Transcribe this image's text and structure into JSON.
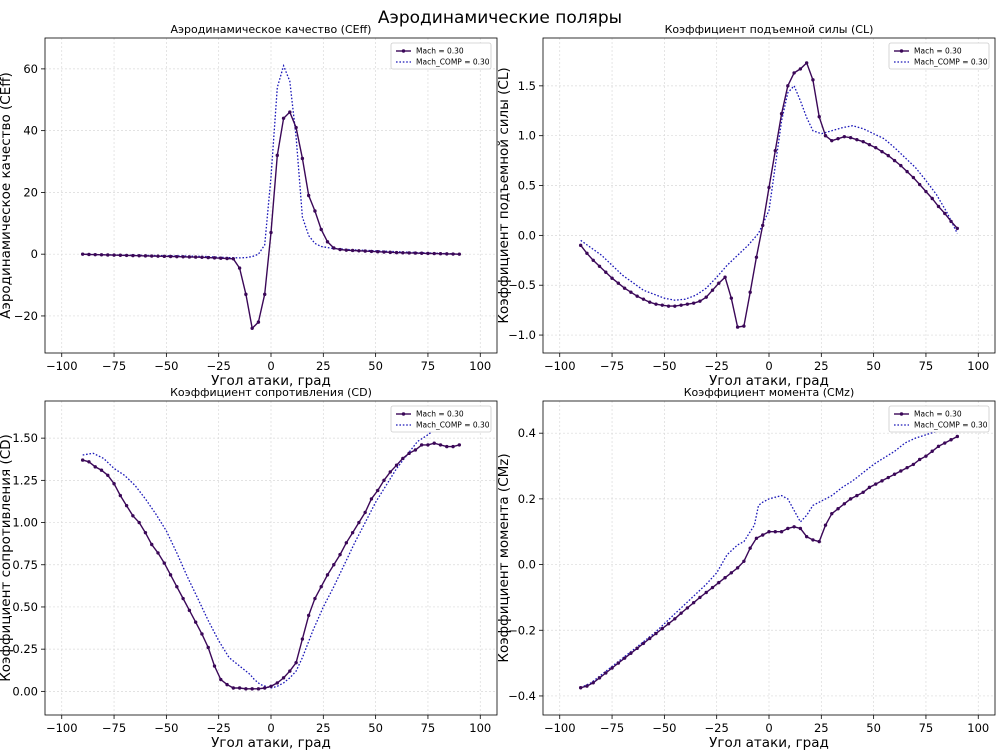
{
  "figure": {
    "title": "Аэродинамические поляры"
  },
  "legend_labels": [
    "Mach = 0.30",
    "Mach_COMP = 0.30"
  ],
  "colors": {
    "series_main": "#3b0858",
    "series_comp": "#1a17b8",
    "grid": "#d9d9d9",
    "frame": "#000000"
  },
  "chart_data": [
    {
      "type": "line",
      "title": "Аэродинамическое качество (CEff)",
      "xlabel": "Угол атаки, град",
      "ylabel": "Аэродинамическое качество (CEff)",
      "xlim": [
        -108,
        108
      ],
      "ylim": [
        -32,
        70
      ],
      "xticks": [
        -100,
        -75,
        -50,
        -25,
        0,
        25,
        50,
        75,
        100
      ],
      "yticks": [
        -20,
        0,
        20,
        40,
        60
      ],
      "grid": true,
      "legend_position": "top-right",
      "series": [
        {
          "name": "Mach = 0.30",
          "style": "solid-marker",
          "x": [
            -90,
            -87,
            -84,
            -81,
            -78,
            -75,
            -72,
            -69,
            -66,
            -63,
            -60,
            -57,
            -54,
            -51,
            -48,
            -45,
            -42,
            -39,
            -36,
            -33,
            -30,
            -27,
            -24,
            -21,
            -18,
            -15,
            -12,
            -9,
            -6,
            -3,
            0,
            3,
            6,
            9,
            12,
            15,
            18,
            21,
            24,
            27,
            30,
            33,
            36,
            39,
            42,
            45,
            48,
            51,
            54,
            57,
            60,
            63,
            66,
            69,
            72,
            75,
            78,
            81,
            84,
            87,
            90
          ],
          "y": [
            0,
            -0.1,
            -0.15,
            -0.2,
            -0.25,
            -0.3,
            -0.35,
            -0.4,
            -0.45,
            -0.5,
            -0.55,
            -0.6,
            -0.65,
            -0.7,
            -0.75,
            -0.8,
            -0.85,
            -0.9,
            -0.95,
            -1.0,
            -1.1,
            -1.2,
            -1.3,
            -1.4,
            -1.5,
            -4.5,
            -13,
            -24,
            -22,
            -13,
            7,
            32,
            44,
            46,
            41,
            31,
            19,
            14,
            8,
            4,
            2,
            1.5,
            1.3,
            1.2,
            1.1,
            1.0,
            0.9,
            0.8,
            0.7,
            0.6,
            0.5,
            0.45,
            0.4,
            0.35,
            0.3,
            0.25,
            0.2,
            0.15,
            0.1,
            0.05,
            0
          ]
        },
        {
          "name": "Mach_COMP = 0.30",
          "style": "dotted",
          "x": [
            -90,
            -80,
            -70,
            -60,
            -50,
            -40,
            -30,
            -25,
            -20,
            -15,
            -12,
            -9,
            -6,
            -3,
            0,
            3,
            6,
            9,
            12,
            15,
            18,
            21,
            24,
            30,
            40,
            50,
            60,
            70,
            80,
            90
          ],
          "y": [
            0,
            -0.2,
            -0.3,
            -0.4,
            -0.5,
            -0.6,
            -0.8,
            -1.0,
            -1.1,
            -1.2,
            -1.1,
            -0.8,
            0,
            3,
            25,
            54,
            61,
            56,
            38,
            12,
            6,
            3.5,
            2.5,
            1.8,
            1.4,
            1.1,
            0.8,
            0.5,
            0.3,
            0
          ]
        }
      ]
    },
    {
      "type": "line",
      "title": "Коэффициент подъемной силы (CL)",
      "xlabel": "Угол атаки, град",
      "ylabel": "Коэффициент подъемной силы (CL)",
      "xlim": [
        -108,
        108
      ],
      "ylim": [
        -1.18,
        1.98
      ],
      "xticks": [
        -100,
        -75,
        -50,
        -25,
        0,
        25,
        50,
        75,
        100
      ],
      "yticks": [
        -1.0,
        -0.5,
        0.0,
        0.5,
        1.0,
        1.5
      ],
      "grid": true,
      "legend_position": "top-right",
      "series": [
        {
          "name": "Mach = 0.30",
          "style": "solid-marker",
          "x": [
            -90,
            -87,
            -84,
            -81,
            -78,
            -75,
            -72,
            -69,
            -66,
            -63,
            -60,
            -57,
            -54,
            -51,
            -48,
            -45,
            -42,
            -39,
            -36,
            -33,
            -30,
            -27,
            -24,
            -21,
            -18,
            -15,
            -12,
            -9,
            -6,
            -3,
            0,
            3,
            6,
            9,
            12,
            15,
            18,
            21,
            24,
            27,
            30,
            33,
            36,
            39,
            42,
            45,
            48,
            51,
            54,
            57,
            60,
            63,
            66,
            69,
            72,
            75,
            78,
            81,
            84,
            87,
            90
          ],
          "y": [
            -0.1,
            -0.18,
            -0.25,
            -0.31,
            -0.37,
            -0.43,
            -0.48,
            -0.53,
            -0.57,
            -0.61,
            -0.64,
            -0.67,
            -0.69,
            -0.7,
            -0.71,
            -0.71,
            -0.7,
            -0.69,
            -0.68,
            -0.66,
            -0.62,
            -0.55,
            -0.48,
            -0.42,
            -0.63,
            -0.92,
            -0.91,
            -0.57,
            -0.22,
            0.1,
            0.48,
            0.85,
            1.22,
            1.5,
            1.63,
            1.67,
            1.73,
            1.56,
            1.19,
            1.0,
            0.95,
            0.97,
            0.99,
            0.98,
            0.96,
            0.94,
            0.91,
            0.88,
            0.84,
            0.8,
            0.75,
            0.7,
            0.64,
            0.58,
            0.51,
            0.44,
            0.37,
            0.29,
            0.22,
            0.14,
            0.07
          ]
        },
        {
          "name": "Mach_COMP = 0.30",
          "style": "dotted",
          "x": [
            -90,
            -80,
            -70,
            -60,
            -50,
            -45,
            -40,
            -35,
            -30,
            -25,
            -20,
            -15,
            -10,
            -5,
            0,
            3,
            6,
            9,
            12,
            15,
            18,
            21,
            25,
            30,
            35,
            40,
            45,
            50,
            55,
            60,
            65,
            70,
            75,
            80,
            85,
            90
          ],
          "y": [
            -0.05,
            -0.2,
            -0.4,
            -0.55,
            -0.63,
            -0.65,
            -0.64,
            -0.6,
            -0.53,
            -0.42,
            -0.3,
            -0.2,
            -0.1,
            0.02,
            0.25,
            0.7,
            1.15,
            1.43,
            1.5,
            1.35,
            1.18,
            1.05,
            1.02,
            1.05,
            1.08,
            1.1,
            1.07,
            1.02,
            0.97,
            0.88,
            0.78,
            0.68,
            0.55,
            0.41,
            0.23,
            0.02
          ]
        }
      ]
    },
    {
      "type": "line",
      "title": "Коэффициент сопротивления (CD)",
      "xlabel": "Угол атаки, град",
      "ylabel": "Коэффициент сопротивления (CD)",
      "xlim": [
        -108,
        108
      ],
      "ylim": [
        -0.14,
        1.72
      ],
      "xticks": [
        -100,
        -75,
        -50,
        -25,
        0,
        25,
        50,
        75,
        100
      ],
      "yticks": [
        0.0,
        0.25,
        0.5,
        0.75,
        1.0,
        1.25,
        1.5
      ],
      "grid": true,
      "legend_position": "top-right",
      "series": [
        {
          "name": "Mach = 0.30",
          "style": "solid-marker",
          "x": [
            -90,
            -87,
            -84,
            -81,
            -78,
            -75,
            -72,
            -69,
            -66,
            -63,
            -60,
            -57,
            -54,
            -51,
            -48,
            -45,
            -42,
            -39,
            -36,
            -33,
            -30,
            -27,
            -24,
            -21,
            -18,
            -15,
            -12,
            -9,
            -6,
            -3,
            0,
            3,
            6,
            9,
            12,
            15,
            18,
            21,
            24,
            27,
            30,
            33,
            36,
            39,
            42,
            45,
            48,
            51,
            54,
            57,
            60,
            63,
            66,
            69,
            72,
            75,
            78,
            81,
            84,
            87,
            90
          ],
          "y": [
            1.37,
            1.36,
            1.33,
            1.31,
            1.28,
            1.23,
            1.16,
            1.1,
            1.04,
            1.0,
            0.94,
            0.87,
            0.82,
            0.76,
            0.69,
            0.62,
            0.55,
            0.48,
            0.41,
            0.34,
            0.26,
            0.15,
            0.07,
            0.04,
            0.02,
            0.02,
            0.015,
            0.015,
            0.015,
            0.02,
            0.03,
            0.05,
            0.08,
            0.12,
            0.17,
            0.31,
            0.45,
            0.55,
            0.62,
            0.69,
            0.75,
            0.81,
            0.88,
            0.94,
            1.0,
            1.06,
            1.14,
            1.19,
            1.25,
            1.3,
            1.34,
            1.38,
            1.41,
            1.43,
            1.46,
            1.46,
            1.47,
            1.46,
            1.45,
            1.45,
            1.46
          ]
        },
        {
          "name": "Mach_COMP = 0.30",
          "style": "dotted",
          "x": [
            -90,
            -85,
            -80,
            -75,
            -70,
            -65,
            -60,
            -55,
            -50,
            -45,
            -40,
            -35,
            -30,
            -25,
            -20,
            -15,
            -12,
            -10,
            -8,
            -5,
            0,
            3,
            6,
            9,
            12,
            15,
            20,
            25,
            30,
            35,
            40,
            45,
            50,
            55,
            60,
            65,
            70,
            75,
            80,
            85,
            90
          ],
          "y": [
            1.4,
            1.41,
            1.38,
            1.32,
            1.28,
            1.22,
            1.14,
            1.05,
            0.95,
            0.82,
            0.68,
            0.55,
            0.42,
            0.3,
            0.2,
            0.15,
            0.12,
            0.1,
            0.07,
            0.04,
            0.02,
            0.03,
            0.05,
            0.08,
            0.12,
            0.2,
            0.36,
            0.5,
            0.62,
            0.75,
            0.88,
            1.0,
            1.12,
            1.22,
            1.32,
            1.4,
            1.48,
            1.52,
            1.57,
            1.58,
            1.59
          ]
        }
      ]
    },
    {
      "type": "line",
      "title": "Коэффициент момента (CMz)",
      "xlabel": "Угол атаки, град",
      "ylabel": "Коэффициент момента (CMz)",
      "xlim": [
        -108,
        108
      ],
      "ylim": [
        -0.458,
        0.498
      ],
      "xticks": [
        -100,
        -75,
        -50,
        -25,
        0,
        25,
        50,
        75,
        100
      ],
      "yticks": [
        -0.4,
        -0.2,
        0.0,
        0.2,
        0.4
      ],
      "grid": true,
      "legend_position": "top-right",
      "series": [
        {
          "name": "Mach = 0.30",
          "style": "solid-marker",
          "x": [
            -90,
            -87,
            -84,
            -81,
            -78,
            -75,
            -72,
            -69,
            -66,
            -63,
            -60,
            -57,
            -54,
            -51,
            -48,
            -45,
            -42,
            -39,
            -36,
            -33,
            -30,
            -27,
            -24,
            -21,
            -18,
            -15,
            -12,
            -9,
            -6,
            -3,
            0,
            3,
            6,
            9,
            12,
            15,
            18,
            21,
            24,
            27,
            30,
            33,
            36,
            39,
            42,
            45,
            48,
            51,
            54,
            57,
            60,
            63,
            66,
            69,
            72,
            75,
            78,
            81,
            84,
            87,
            90
          ],
          "y": [
            -0.375,
            -0.37,
            -0.36,
            -0.345,
            -0.33,
            -0.315,
            -0.3,
            -0.285,
            -0.27,
            -0.255,
            -0.24,
            -0.225,
            -0.21,
            -0.195,
            -0.18,
            -0.165,
            -0.148,
            -0.132,
            -0.116,
            -0.1,
            -0.085,
            -0.07,
            -0.055,
            -0.04,
            -0.025,
            -0.01,
            0.01,
            0.05,
            0.08,
            0.09,
            0.1,
            0.1,
            0.1,
            0.11,
            0.115,
            0.11,
            0.085,
            0.075,
            0.07,
            0.12,
            0.155,
            0.17,
            0.185,
            0.2,
            0.21,
            0.22,
            0.235,
            0.245,
            0.255,
            0.265,
            0.275,
            0.285,
            0.295,
            0.305,
            0.32,
            0.33,
            0.345,
            0.36,
            0.37,
            0.38,
            0.39
          ]
        },
        {
          "name": "Mach_COMP = 0.30",
          "style": "dotted",
          "x": [
            -90,
            -85,
            -80,
            -75,
            -70,
            -65,
            -60,
            -55,
            -50,
            -45,
            -40,
            -35,
            -30,
            -25,
            -20,
            -15,
            -12,
            -9,
            -7,
            -5,
            -3,
            0,
            3,
            6,
            9,
            12,
            15,
            18,
            21,
            24,
            27,
            30,
            35,
            40,
            45,
            50,
            55,
            60,
            65,
            70,
            75,
            80,
            85,
            90
          ],
          "y": [
            -0.375,
            -0.36,
            -0.335,
            -0.31,
            -0.285,
            -0.26,
            -0.235,
            -0.21,
            -0.18,
            -0.15,
            -0.12,
            -0.09,
            -0.06,
            -0.025,
            0.03,
            0.06,
            0.07,
            0.1,
            0.12,
            0.18,
            0.19,
            0.2,
            0.205,
            0.21,
            0.2,
            0.165,
            0.13,
            0.15,
            0.18,
            0.19,
            0.2,
            0.21,
            0.235,
            0.255,
            0.28,
            0.305,
            0.325,
            0.345,
            0.37,
            0.385,
            0.395,
            0.405,
            0.41,
            0.42
          ]
        }
      ]
    }
  ]
}
